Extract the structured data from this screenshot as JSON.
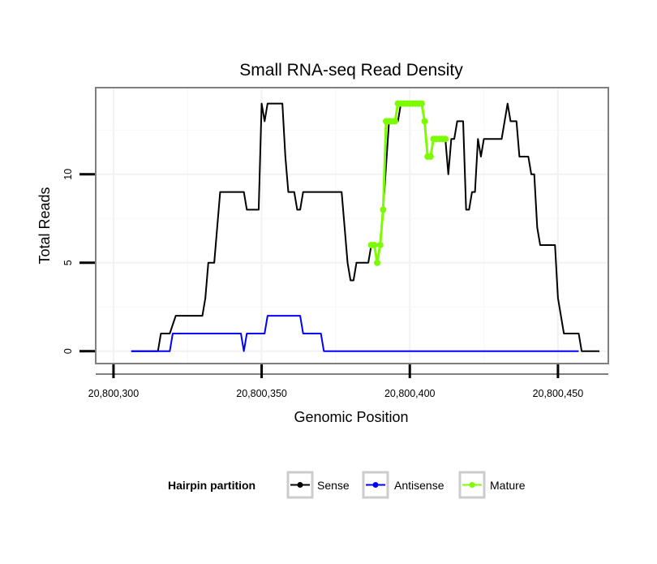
{
  "chart_data": {
    "type": "line",
    "title": "Small RNA-seq Read Density",
    "xlabel": "Genomic Position",
    "ylabel": "Total Reads",
    "xlim": [
      20800294,
      20800467
    ],
    "ylim": [
      -0.7,
      14.9
    ],
    "x_ticks": [
      20800300,
      20800350,
      20800400,
      20800450
    ],
    "x_tick_labels": [
      "20,800,300",
      "20,800,350",
      "20,800,400",
      "20,800,450"
    ],
    "y_ticks": [
      0,
      5,
      10
    ],
    "y_tick_labels": [
      "0",
      "5",
      "10"
    ],
    "grid": true,
    "legend_position": "bottom",
    "legend_title": "Hairpin partition",
    "series": [
      {
        "name": "Sense",
        "color": "#000000",
        "marker": false,
        "points": [
          [
            20800306,
            0
          ],
          [
            20800315,
            0
          ],
          [
            20800316,
            1
          ],
          [
            20800319,
            1
          ],
          [
            20800321,
            2
          ],
          [
            20800330,
            2
          ],
          [
            20800331,
            3
          ],
          [
            20800332,
            5
          ],
          [
            20800334,
            5
          ],
          [
            20800335,
            7
          ],
          [
            20800336,
            9
          ],
          [
            20800344,
            9
          ],
          [
            20800345,
            8
          ],
          [
            20800349,
            8
          ],
          [
            20800350,
            14
          ],
          [
            20800351,
            13
          ],
          [
            20800352,
            14
          ],
          [
            20800357,
            14
          ],
          [
            20800358,
            11
          ],
          [
            20800359,
            9
          ],
          [
            20800361,
            9
          ],
          [
            20800362,
            8
          ],
          [
            20800363,
            8
          ],
          [
            20800364,
            9
          ],
          [
            20800377,
            9
          ],
          [
            20800379,
            5
          ],
          [
            20800380,
            4
          ],
          [
            20800381,
            4
          ],
          [
            20800382,
            5
          ],
          [
            20800386,
            5
          ],
          [
            20800387,
            6
          ],
          [
            20800388,
            6
          ],
          [
            20800389,
            5
          ],
          [
            20800390,
            6
          ],
          [
            20800391,
            8
          ],
          [
            20800393,
            13
          ],
          [
            20800396,
            13
          ],
          [
            20800397,
            14
          ],
          [
            20800404,
            14
          ],
          [
            20800405,
            13
          ],
          [
            20800406,
            11
          ],
          [
            20800407,
            11
          ],
          [
            20800408,
            12
          ],
          [
            20800412,
            12
          ],
          [
            20800413,
            10
          ],
          [
            20800414,
            12
          ],
          [
            20800415,
            12
          ],
          [
            20800416,
            13
          ],
          [
            20800418,
            13
          ],
          [
            20800419,
            8
          ],
          [
            20800420,
            8
          ],
          [
            20800421,
            9
          ],
          [
            20800422,
            9
          ],
          [
            20800423,
            12
          ],
          [
            20800424,
            11
          ],
          [
            20800425,
            12
          ],
          [
            20800431,
            12
          ],
          [
            20800432,
            13
          ],
          [
            20800433,
            14
          ],
          [
            20800434,
            13
          ],
          [
            20800436,
            13
          ],
          [
            20800437,
            11
          ],
          [
            20800440,
            11
          ],
          [
            20800441,
            10
          ],
          [
            20800442,
            10
          ],
          [
            20800443,
            7
          ],
          [
            20800444,
            6
          ],
          [
            20800449,
            6
          ],
          [
            20800450,
            3
          ],
          [
            20800452,
            1
          ],
          [
            20800457,
            1
          ],
          [
            20800458,
            0
          ],
          [
            20800464,
            0
          ]
        ]
      },
      {
        "name": "Antisense",
        "color": "#0000ff",
        "marker": false,
        "points": [
          [
            20800306,
            0
          ],
          [
            20800319,
            0
          ],
          [
            20800320,
            1
          ],
          [
            20800343,
            1
          ],
          [
            20800344,
            0
          ],
          [
            20800345,
            1
          ],
          [
            20800351,
            1
          ],
          [
            20800352,
            2
          ],
          [
            20800363,
            2
          ],
          [
            20800364,
            1
          ],
          [
            20800370,
            1
          ],
          [
            20800371,
            0
          ],
          [
            20800457,
            0
          ]
        ]
      },
      {
        "name": "Mature",
        "color": "#7cfc00",
        "marker": true,
        "points": [
          [
            20800387,
            6
          ],
          [
            20800388,
            6
          ],
          [
            20800389,
            5
          ],
          [
            20800390,
            6
          ],
          [
            20800391,
            8
          ],
          [
            20800392,
            13
          ],
          [
            20800393,
            13
          ],
          [
            20800394,
            13
          ],
          [
            20800395,
            13
          ],
          [
            20800396,
            14
          ],
          [
            20800397,
            14
          ],
          [
            20800398,
            14
          ],
          [
            20800399,
            14
          ],
          [
            20800400,
            14
          ],
          [
            20800401,
            14
          ],
          [
            20800402,
            14
          ],
          [
            20800403,
            14
          ],
          [
            20800404,
            14
          ],
          [
            20800405,
            13
          ],
          [
            20800406,
            11
          ],
          [
            20800407,
            11
          ],
          [
            20800408,
            12
          ],
          [
            20800409,
            12
          ],
          [
            20800410,
            12
          ],
          [
            20800411,
            12
          ],
          [
            20800412,
            12
          ]
        ]
      }
    ]
  }
}
